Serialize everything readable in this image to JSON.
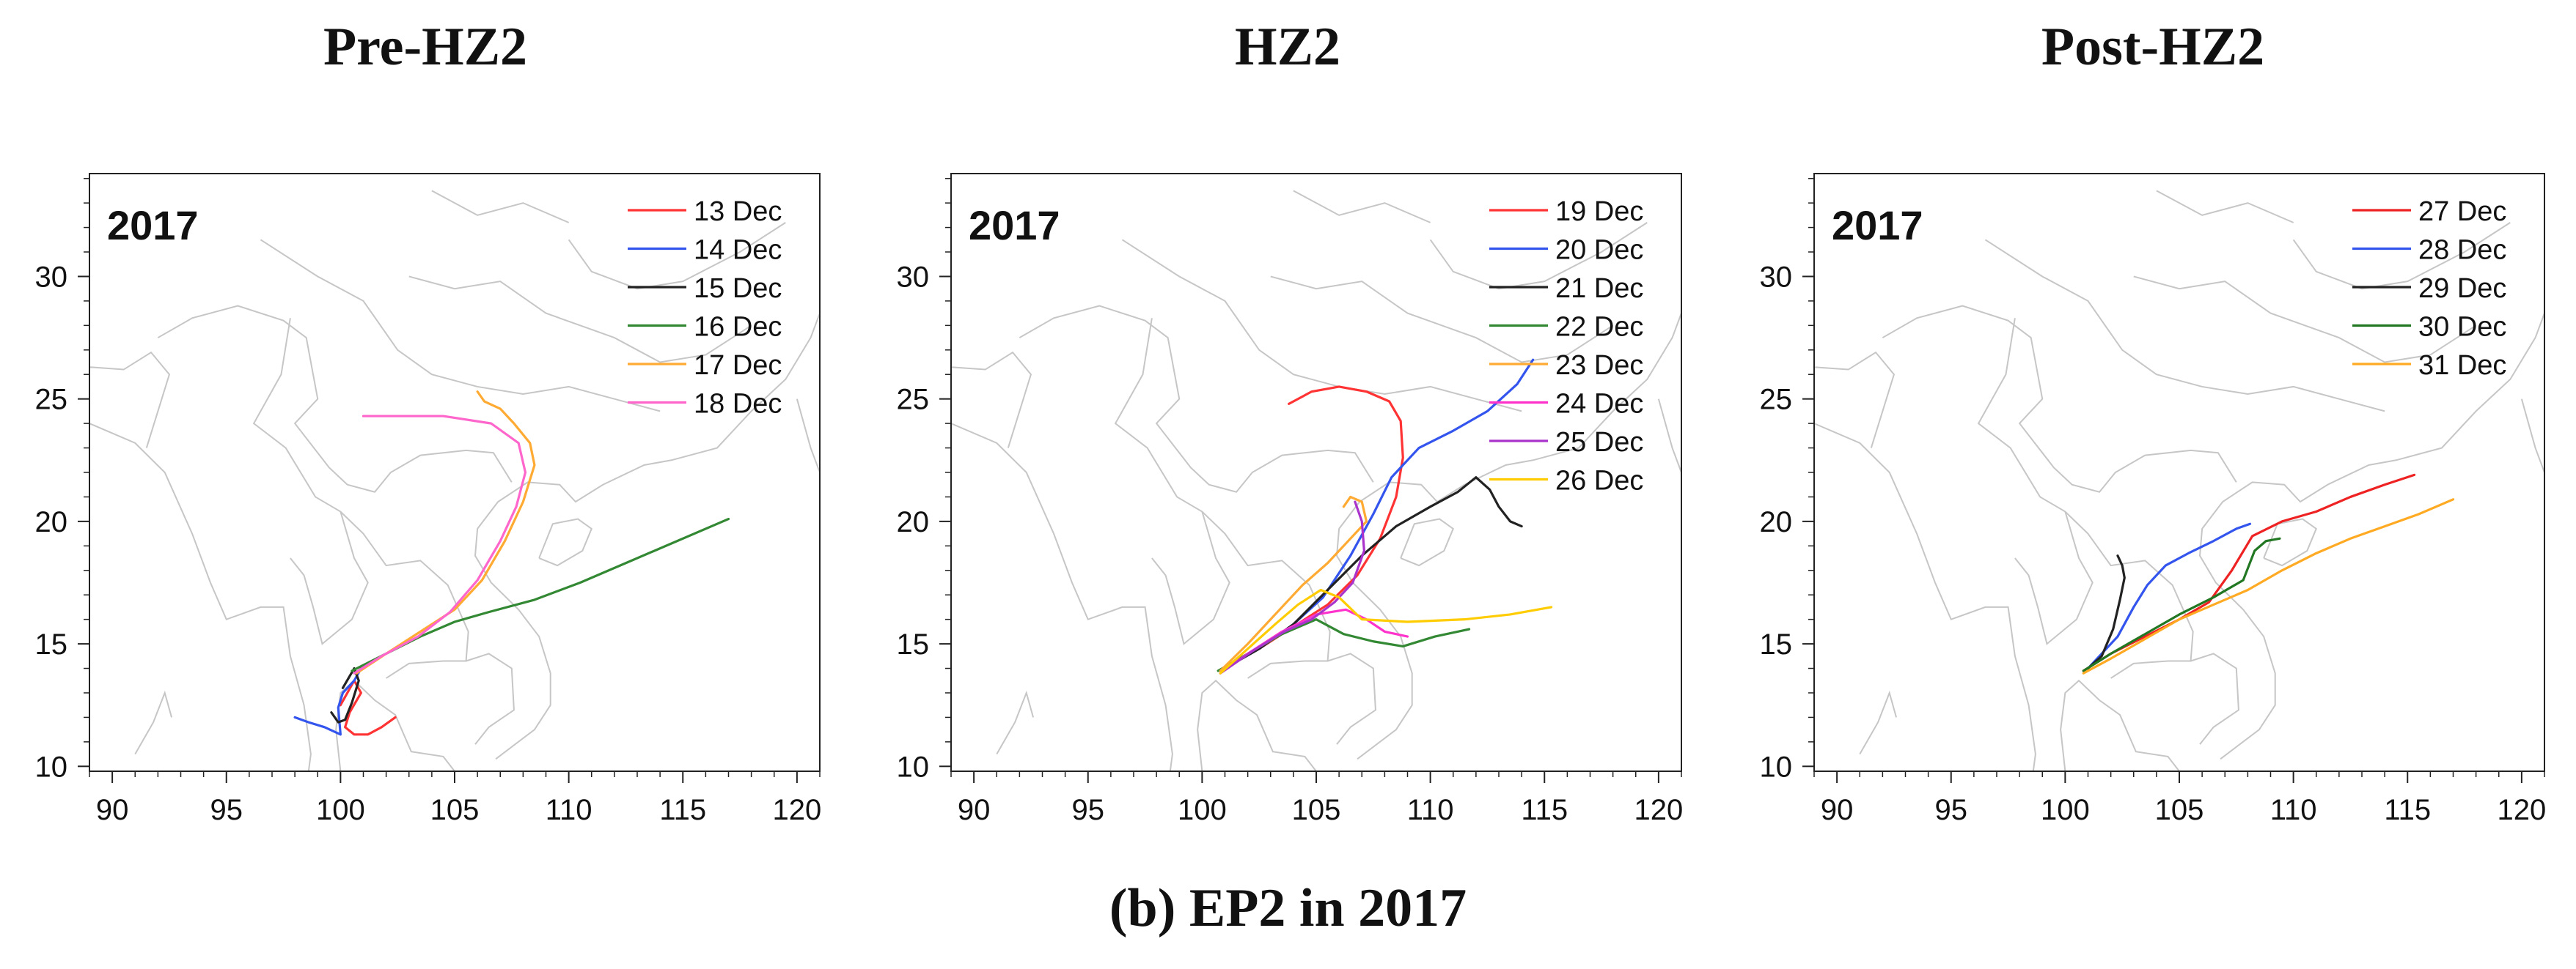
{
  "panels_header": [
    "Pre-HZ2",
    "HZ2",
    "Post-HZ2"
  ],
  "caption": "(b) EP2 in 2017",
  "chart_data": [
    {
      "type": "line",
      "title": "Pre-HZ2",
      "year_label": "2017",
      "xlim": [
        89,
        121
      ],
      "ylim": [
        9.8,
        34.2
      ],
      "xticks": [
        90,
        95,
        100,
        105,
        110,
        115,
        120
      ],
      "yticks": [
        10,
        15,
        20,
        25,
        30
      ],
      "series": [
        {
          "name": "13 Dec",
          "color": "#ff3333",
          "x": [
            102.4,
            101.8,
            101.2,
            100.6,
            100.2,
            100.4,
            100.9,
            100.6,
            100.3,
            100.0
          ],
          "y": [
            12.0,
            11.6,
            11.3,
            11.3,
            11.6,
            12.2,
            13.0,
            13.5,
            13.0,
            12.5
          ]
        },
        {
          "name": "14 Dec",
          "color": "#3355ee",
          "x": [
            98.0,
            98.6,
            99.3,
            100.0,
            99.9,
            100.1,
            100.6,
            100.9
          ],
          "y": [
            12.0,
            11.8,
            11.6,
            11.3,
            12.4,
            13.0,
            13.5,
            14.0
          ]
        },
        {
          "name": "15 Dec",
          "color": "#222222",
          "x": [
            99.6,
            99.9,
            100.2,
            100.5,
            100.8,
            100.6,
            100.1
          ],
          "y": [
            12.2,
            11.8,
            11.9,
            12.6,
            13.5,
            14.0,
            13.2
          ]
        },
        {
          "name": "16 Dec",
          "color": "#338833",
          "x": [
            100.5,
            102.0,
            103.5,
            105.0,
            106.5,
            108.5,
            110.5,
            112.5,
            114.5,
            117.0
          ],
          "y": [
            13.9,
            14.6,
            15.3,
            15.9,
            16.3,
            16.8,
            17.5,
            18.3,
            19.1,
            20.1
          ]
        },
        {
          "name": "17 Dec",
          "color": "#ffaa33",
          "x": [
            100.7,
            102.0,
            103.5,
            105.0,
            106.2,
            107.2,
            108.0,
            108.5,
            108.3,
            107.6,
            107.0,
            106.3,
            106.0
          ],
          "y": [
            13.8,
            14.6,
            15.5,
            16.4,
            17.6,
            19.2,
            20.8,
            22.3,
            23.2,
            24.0,
            24.6,
            24.9,
            25.3
          ]
        },
        {
          "name": "18 Dec",
          "color": "#ff66cc",
          "x": [
            100.6,
            101.8,
            103.4,
            104.8,
            106.0,
            107.0,
            107.7,
            108.1,
            107.8,
            106.6,
            104.5,
            102.5,
            101.0
          ],
          "y": [
            13.8,
            14.5,
            15.3,
            16.3,
            17.6,
            19.2,
            20.6,
            22.0,
            23.2,
            24.0,
            24.3,
            24.3,
            24.3
          ]
        }
      ]
    },
    {
      "type": "line",
      "title": "HZ2",
      "year_label": "2017",
      "xlim": [
        89,
        121
      ],
      "ylim": [
        9.8,
        34.2
      ],
      "xticks": [
        90,
        95,
        100,
        105,
        110,
        115,
        120
      ],
      "yticks": [
        10,
        15,
        20,
        25,
        30
      ],
      "series": [
        {
          "name": "19 Dec",
          "color": "#ff3333",
          "x": [
            100.8,
            102.5,
            104.0,
            105.5,
            106.8,
            107.8,
            108.5,
            108.8,
            108.7,
            108.2,
            107.2,
            106.0,
            104.8,
            103.8
          ],
          "y": [
            13.9,
            14.8,
            15.7,
            16.6,
            17.8,
            19.3,
            21.0,
            22.6,
            24.1,
            24.9,
            25.3,
            25.5,
            25.3,
            24.8
          ]
        },
        {
          "name": "20 Dec",
          "color": "#3355ee",
          "x": [
            100.8,
            102.5,
            104.0,
            105.3,
            106.5,
            107.5,
            108.3,
            109.5,
            111.0,
            112.5,
            113.8,
            114.5
          ],
          "y": [
            13.9,
            14.8,
            15.8,
            16.9,
            18.6,
            20.3,
            21.8,
            23.0,
            23.7,
            24.5,
            25.6,
            26.6
          ]
        },
        {
          "name": "21 Dec",
          "color": "#222222",
          "x": [
            100.8,
            102.5,
            104.0,
            105.5,
            107.0,
            108.5,
            110.0,
            111.2,
            112.0,
            112.6,
            113.0,
            113.5,
            114.0
          ],
          "y": [
            13.9,
            14.8,
            15.8,
            17.2,
            18.6,
            19.8,
            20.6,
            21.2,
            21.8,
            21.3,
            20.6,
            20.0,
            19.8
          ]
        },
        {
          "name": "22 Dec",
          "color": "#338833",
          "x": [
            100.7,
            102.0,
            103.5,
            105.0,
            106.2,
            107.5,
            108.8,
            110.2,
            111.7
          ],
          "y": [
            13.9,
            14.6,
            15.4,
            16.0,
            15.4,
            15.1,
            14.9,
            15.3,
            15.6
          ]
        },
        {
          "name": "23 Dec",
          "color": "#ffaa33",
          "x": [
            100.8,
            102.0,
            103.2,
            104.4,
            105.5,
            106.5,
            107.2,
            107.0,
            106.5,
            106.2
          ],
          "y": [
            13.9,
            15.0,
            16.2,
            17.4,
            18.3,
            19.3,
            20.0,
            20.8,
            21.0,
            20.6
          ]
        },
        {
          "name": "24 Dec",
          "color": "#ff33cc",
          "x": [
            100.8,
            102.0,
            103.5,
            105.0,
            106.3,
            107.2,
            108.0,
            109.0
          ],
          "y": [
            13.8,
            14.6,
            15.5,
            16.2,
            16.4,
            16.0,
            15.5,
            15.3
          ]
        },
        {
          "name": "25 Dec",
          "color": "#aa33cc",
          "x": [
            100.8,
            102.2,
            103.6,
            104.8,
            105.8,
            106.6,
            107.1,
            107.0,
            106.7
          ],
          "y": [
            13.8,
            14.7,
            15.5,
            16.0,
            16.7,
            17.5,
            18.8,
            20.0,
            20.8
          ]
        },
        {
          "name": "26 Dec",
          "color": "#ffcc00",
          "x": [
            100.8,
            102.0,
            103.2,
            104.2,
            105.2,
            106.0,
            107.0,
            109.0,
            111.5,
            113.5,
            115.3
          ],
          "y": [
            13.8,
            14.8,
            15.8,
            16.6,
            17.2,
            16.9,
            16.0,
            15.9,
            16.0,
            16.2,
            16.5
          ]
        }
      ]
    },
    {
      "type": "line",
      "title": "Post-HZ2",
      "year_label": "2017",
      "xlim": [
        89,
        121
      ],
      "ylim": [
        9.8,
        34.2
      ],
      "xticks": [
        90,
        95,
        100,
        105,
        110,
        115,
        120
      ],
      "yticks": [
        10,
        15,
        20,
        25,
        30
      ],
      "series": [
        {
          "name": "27 Dec",
          "color": "#ee2222",
          "x": [
            100.8,
            102.0,
            103.5,
            105.0,
            106.3,
            107.3,
            108.2,
            109.5,
            111.0,
            112.5,
            114.0,
            115.3
          ],
          "y": [
            13.9,
            14.6,
            15.3,
            16.0,
            16.7,
            18.0,
            19.4,
            20.0,
            20.4,
            21.0,
            21.5,
            21.9
          ]
        },
        {
          "name": "28 Dec",
          "color": "#3355ee",
          "x": [
            101.0,
            102.3,
            103.0,
            103.6,
            104.4,
            105.4,
            106.5,
            107.5,
            108.1
          ],
          "y": [
            14.0,
            15.3,
            16.5,
            17.4,
            18.2,
            18.7,
            19.2,
            19.7,
            19.9
          ]
        },
        {
          "name": "29 Dec",
          "color": "#222222",
          "x": [
            101.0,
            101.6,
            102.1,
            102.4,
            102.6,
            102.5,
            102.3
          ],
          "y": [
            14.0,
            14.5,
            15.6,
            16.8,
            17.7,
            18.2,
            18.6
          ]
        },
        {
          "name": "30 Dec",
          "color": "#227722",
          "x": [
            100.8,
            102.0,
            103.5,
            105.0,
            106.5,
            107.8,
            108.3,
            108.8,
            109.4
          ],
          "y": [
            13.9,
            14.6,
            15.4,
            16.2,
            16.9,
            17.6,
            18.8,
            19.2,
            19.3
          ]
        },
        {
          "name": "31 Dec",
          "color": "#ffaa22",
          "x": [
            100.8,
            102.0,
            103.5,
            105.0,
            106.5,
            108.0,
            109.5,
            111.0,
            112.5,
            114.0,
            115.5,
            117.0
          ],
          "y": [
            13.8,
            14.4,
            15.2,
            16.0,
            16.6,
            17.2,
            18.0,
            18.7,
            19.3,
            19.8,
            20.3,
            20.9
          ]
        }
      ]
    }
  ]
}
